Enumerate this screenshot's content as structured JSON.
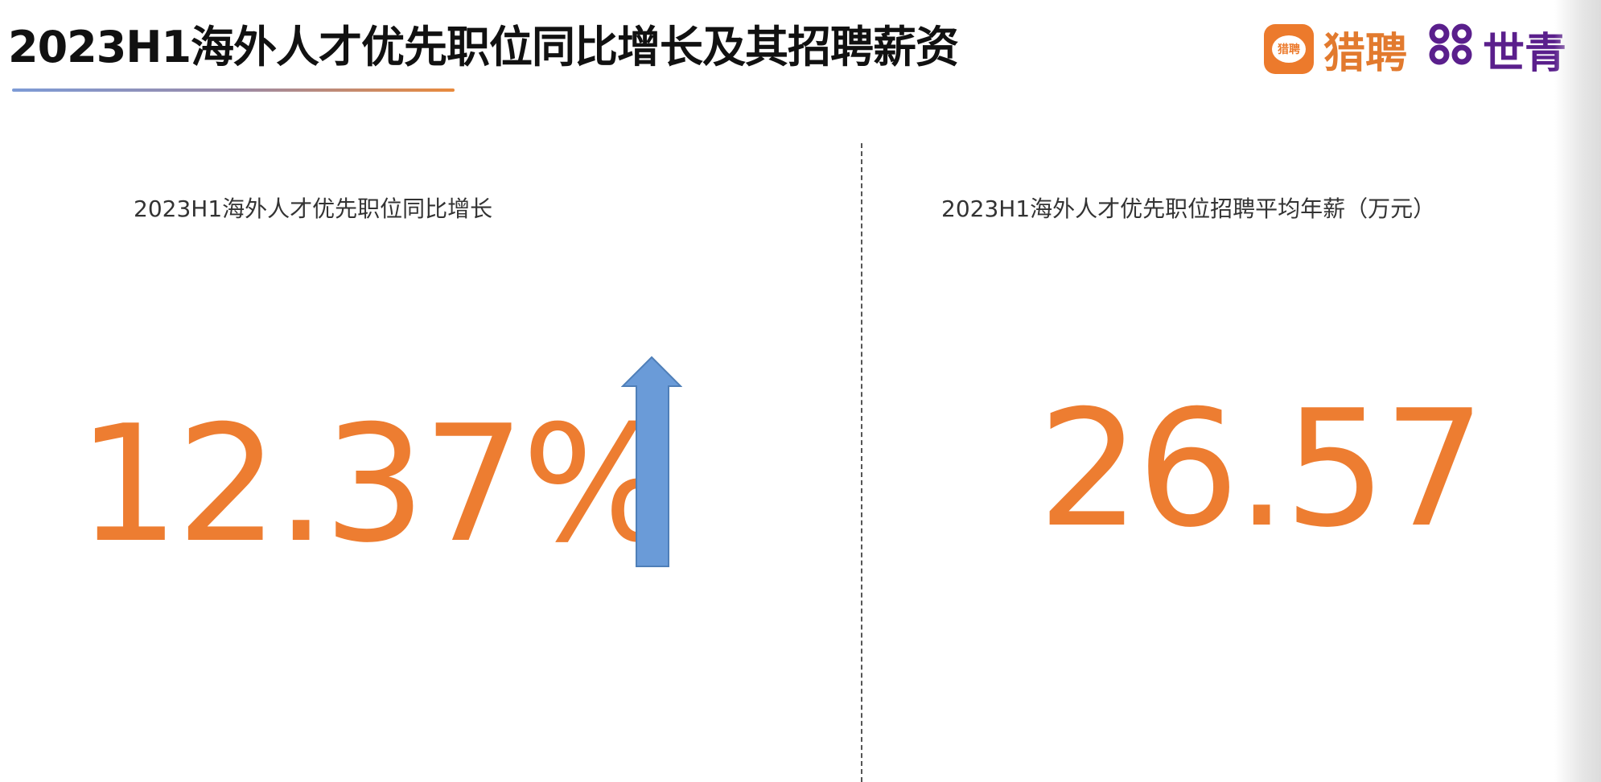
{
  "header": {
    "title": "2023H1海外人才优先职位同比增长及其招聘薪资",
    "logo": {
      "badge_text": "猎聘",
      "brand1": "猎聘",
      "brand2_mark": "ꝏꝏ",
      "brand2": "世青"
    }
  },
  "left_panel": {
    "subtitle": "2023H1海外人才优先职位同比增长",
    "value": "12.37%",
    "trend_icon": "arrow-up-icon"
  },
  "right_panel": {
    "subtitle": "2023H1海外人才优先职位招聘平均年薪（万元）",
    "value": "26.57"
  },
  "colors": {
    "accent_orange": "#ED7D31",
    "arrow_blue": "#6A9BD8",
    "brand_purple": "#5A1F8C"
  }
}
